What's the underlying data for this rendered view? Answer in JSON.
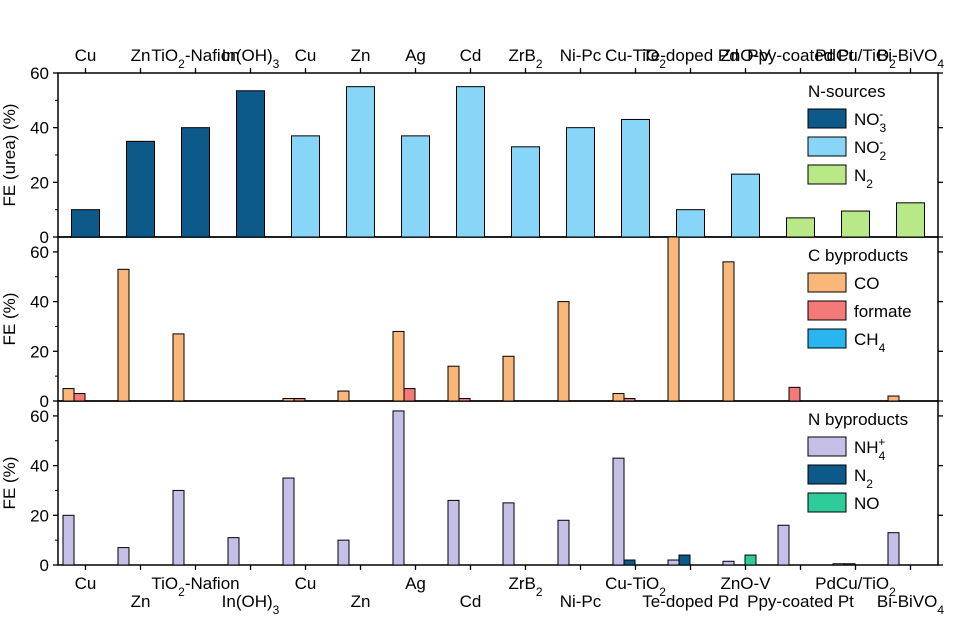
{
  "chart_data": {
    "type": "bar",
    "categories": [
      {
        "base": "Cu"
      },
      {
        "base": "Zn"
      },
      {
        "base": "TiO",
        "sub": "2",
        "tail": "-Nafion"
      },
      {
        "base": "In(OH)",
        "sub": "3"
      },
      {
        "base": "Cu"
      },
      {
        "base": "Zn"
      },
      {
        "base": "Ag"
      },
      {
        "base": "Cd"
      },
      {
        "base": "ZrB",
        "sub": "2"
      },
      {
        "base": "Ni-Pc"
      },
      {
        "base": "Cu-TiO",
        "sub": "2"
      },
      {
        "base": "Te-doped Pd"
      },
      {
        "base": "ZnO-V"
      },
      {
        "base": "Ppy-coated Pt"
      },
      {
        "base": "PdCu/TiO",
        "sub": "2"
      },
      {
        "base": "Bi-BiVO",
        "sub": "4"
      }
    ],
    "panels": [
      {
        "id": "urea",
        "ylabel": "FE (urea) (%)",
        "ylim": [
          0,
          60
        ],
        "yticks": [
          0,
          20,
          40,
          60
        ],
        "legend_title": "N-sources",
        "series": [
          {
            "name": "NO3-",
            "label_base": "NO",
            "label_sub": "3",
            "label_sup": "-",
            "color": "#0d5a8a",
            "values": [
              10,
              35,
              40,
              53.5,
              null,
              null,
              null,
              null,
              null,
              null,
              null,
              null,
              null,
              null,
              null,
              null
            ]
          },
          {
            "name": "NO2-",
            "label_base": "NO",
            "label_sub": "2",
            "label_sup": "-",
            "color": "#87d5f7",
            "values": [
              null,
              null,
              null,
              null,
              37,
              55,
              37,
              55,
              33,
              40,
              43,
              10,
              23,
              null,
              null,
              null
            ]
          },
          {
            "name": "N2",
            "label_base": "N",
            "label_sub": "2",
            "label_sup": "",
            "color": "#b8e986",
            "values": [
              null,
              null,
              null,
              null,
              null,
              null,
              null,
              null,
              null,
              null,
              null,
              null,
              null,
              7,
              9.5,
              12.5
            ]
          }
        ]
      },
      {
        "id": "c-byproducts",
        "ylabel": "FE (%)",
        "ylim": [
          0,
          66
        ],
        "yticks": [
          0,
          20,
          40,
          60
        ],
        "legend_title": "C byproducts",
        "series": [
          {
            "name": "CO",
            "label_base": "CO",
            "label_sub": "",
            "label_sup": "",
            "color": "#f9b87a",
            "values": [
              5,
              53,
              27,
              0,
              1,
              4,
              28,
              14,
              18,
              40,
              3,
              66,
              56,
              0,
              0,
              2
            ]
          },
          {
            "name": "formate",
            "label_base": "formate",
            "label_sub": "",
            "label_sup": "",
            "color": "#f47a7a",
            "values": [
              3,
              0,
              0,
              0,
              1,
              0,
              5,
              1,
              0,
              0,
              1,
              0,
              0,
              5.5,
              0,
              0
            ]
          },
          {
            "name": "CH4",
            "label_base": "CH",
            "label_sub": "4",
            "label_sup": "",
            "color": "#29b6f0",
            "values": [
              0,
              0,
              0,
              0,
              0,
              0,
              0,
              0,
              0,
              0,
              0,
              0,
              0,
              0,
              0,
              0
            ]
          }
        ]
      },
      {
        "id": "n-byproducts",
        "ylabel": "FE (%)",
        "ylim": [
          0,
          66
        ],
        "yticks": [
          0,
          20,
          40,
          60
        ],
        "legend_title": "N byproducts",
        "series": [
          {
            "name": "NH4+",
            "label_base": "NH",
            "label_sub": "4",
            "label_sup": "+",
            "color": "#c5c0e8",
            "values": [
              20,
              7,
              30,
              11,
              35,
              10,
              62,
              26,
              25,
              18,
              43,
              2,
              1.5,
              16,
              0.5,
              13
            ]
          },
          {
            "name": "N2",
            "label_base": "N",
            "label_sub": "2",
            "label_sup": "",
            "color": "#0d5a8a",
            "values": [
              0,
              0,
              0,
              0,
              0,
              0,
              0,
              0,
              0,
              0,
              2,
              4,
              0,
              0,
              0.5,
              0
            ]
          },
          {
            "name": "NO",
            "label_base": "NO",
            "label_sub": "",
            "label_sup": "",
            "color": "#2ecc9a",
            "values": [
              0,
              0,
              0,
              0,
              0,
              0,
              0,
              0,
              0,
              0,
              0,
              0,
              4,
              0,
              0,
              0
            ]
          }
        ]
      }
    ]
  }
}
